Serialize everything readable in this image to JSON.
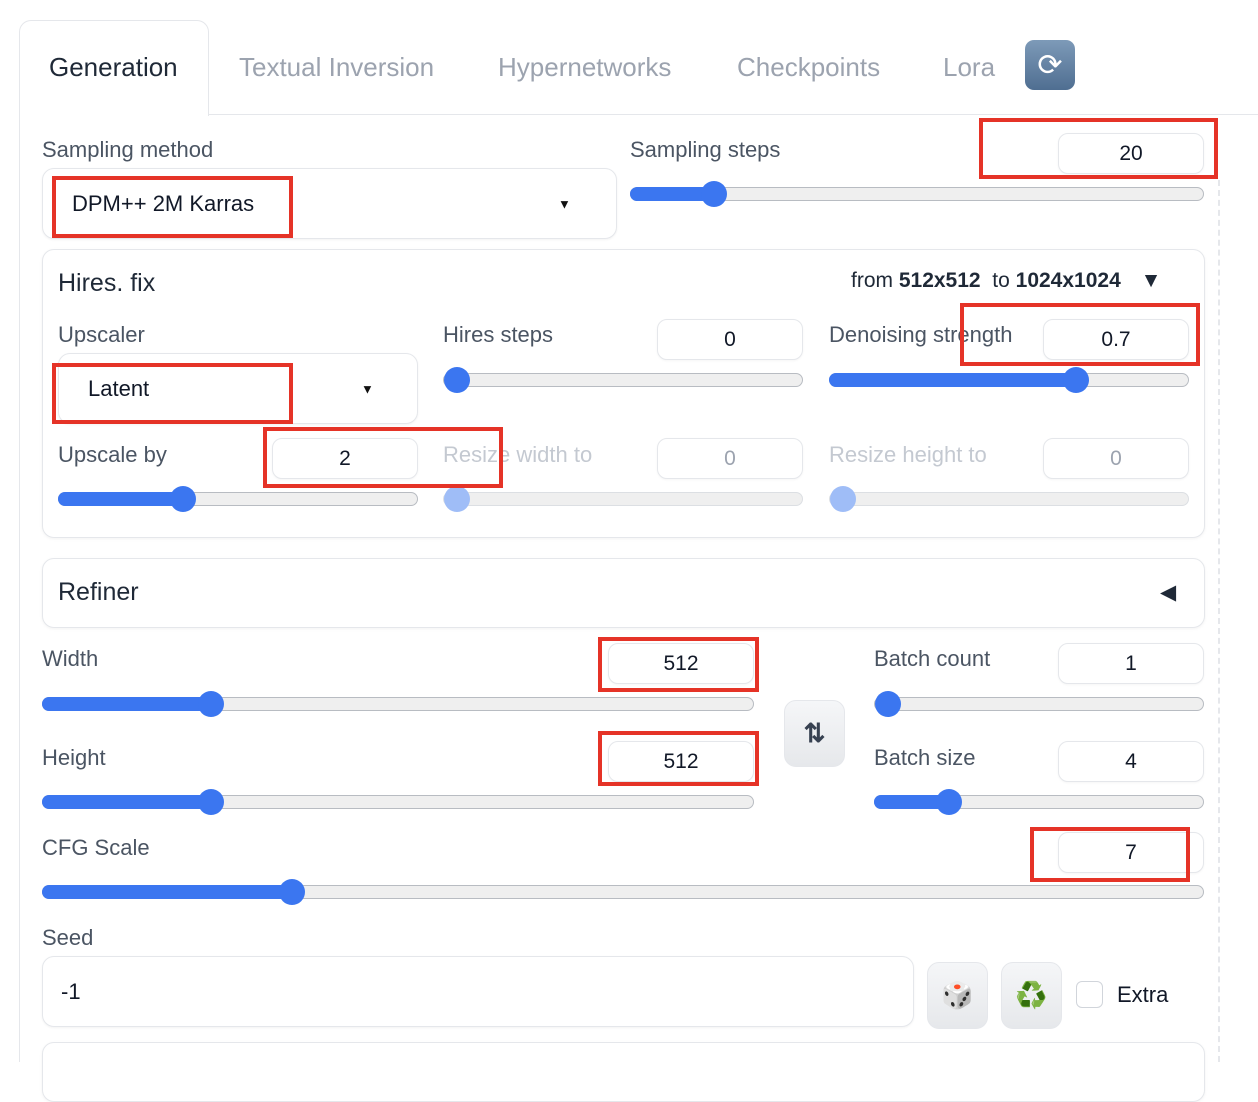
{
  "tabs": [
    {
      "label": "Generation",
      "active": true
    },
    {
      "label": "Textual Inversion"
    },
    {
      "label": "Hypernetworks"
    },
    {
      "label": "Checkpoints"
    },
    {
      "label": "Lora"
    }
  ],
  "refresh_icon": "🔁",
  "sampling": {
    "method_label": "Sampling method",
    "method_value": "DPM++ 2M Karras",
    "steps_label": "Sampling steps",
    "steps_value": "20",
    "steps_fraction": 0.13
  },
  "hires": {
    "title": "Hires. fix",
    "from_prefix": "from",
    "from_value": "512x512",
    "to_prefix": "to",
    "to_value": "1024x1024",
    "toggle": "▼",
    "upscaler_label": "Upscaler",
    "upscaler_value": "Latent",
    "steps_label": "Hires steps",
    "steps_value": "0",
    "denoise_label": "Denoising strength",
    "denoise_value": "0.7",
    "upscale_label": "Upscale by",
    "upscale_value": "2",
    "resize_w_label": "Resize width to",
    "resize_w_value": "0",
    "resize_h_label": "Resize height to",
    "resize_h_value": "0"
  },
  "refiner": {
    "title": "Refiner",
    "toggle": "◀"
  },
  "width": {
    "label": "Width",
    "value": "512"
  },
  "height": {
    "label": "Height",
    "value": "512"
  },
  "swap_icon": "⇅",
  "batch_count": {
    "label": "Batch count",
    "value": "1"
  },
  "batch_size": {
    "label": "Batch size",
    "value": "4"
  },
  "cfg": {
    "label": "CFG Scale",
    "value": "7"
  },
  "seed": {
    "label": "Seed",
    "value": "-1",
    "dice_icon": "🎲",
    "recycle_icon": "♻️",
    "extra_label": "Extra",
    "extra_checked": false
  },
  "colors": {
    "accent": "#3b76f0",
    "highlight": "#e53327"
  }
}
